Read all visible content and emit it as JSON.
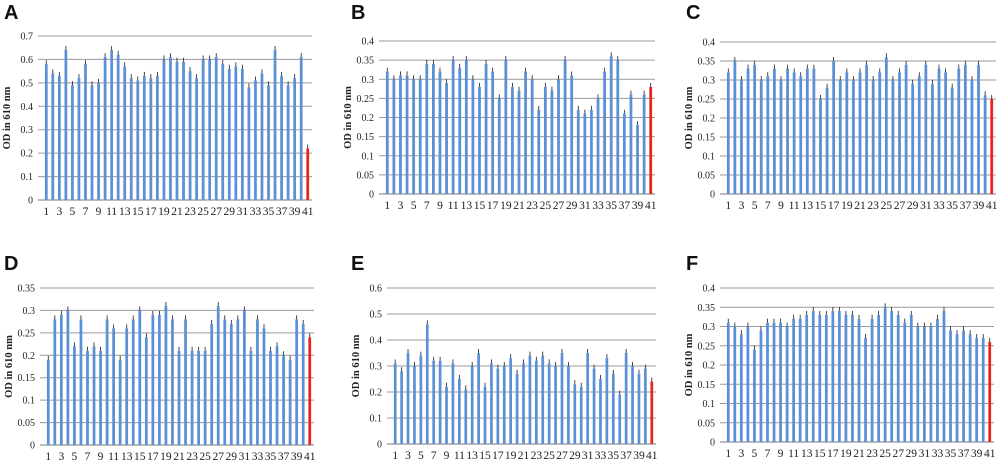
{
  "colors": {
    "bar": "#5b8fd6",
    "control": "#e8231a",
    "grid": "#9a9a9a",
    "axis": "#777777"
  },
  "chart_data": [
    {
      "type": "bar",
      "letter": "A",
      "ylabel": "OD in 610 nm",
      "yticks": [
        "0",
        "0.1",
        "0.2",
        "0.3",
        "0.4",
        "0.5",
        "0.6",
        "0.7"
      ],
      "ylim": [
        0,
        0.7
      ],
      "xtick_labels": [
        "1",
        "3",
        "5",
        "7",
        "9",
        "11",
        "13",
        "15",
        "17",
        "19",
        "21",
        "23",
        "25",
        "27",
        "29",
        "31",
        "33",
        "35",
        "37",
        "39",
        "41"
      ],
      "values": [
        0.58,
        0.54,
        0.53,
        0.64,
        0.49,
        0.52,
        0.58,
        0.49,
        0.5,
        0.61,
        0.64,
        0.62,
        0.57,
        0.52,
        0.51,
        0.53,
        0.52,
        0.53,
        0.6,
        0.61,
        0.59,
        0.59,
        0.55,
        0.52,
        0.6,
        0.6,
        0.61,
        0.58,
        0.56,
        0.57,
        0.56,
        0.48,
        0.51,
        0.54,
        0.49,
        0.64,
        0.53,
        0.49,
        0.52,
        0.61,
        0.22
      ],
      "highlight_last": true
    },
    {
      "type": "bar",
      "letter": "B",
      "ylabel": "OD in 610 nm",
      "yticks": [
        "0",
        "0.05",
        "0.1",
        "0.15",
        "0.2",
        "0.25",
        "0.3",
        "0.35",
        "0.4"
      ],
      "ylim": [
        0,
        0.4
      ],
      "xtick_labels": [
        "1",
        "3",
        "5",
        "7",
        "9",
        "11",
        "13",
        "15",
        "17",
        "19",
        "21",
        "23",
        "25",
        "27",
        "29",
        "31",
        "33",
        "35",
        "37",
        "39",
        "41"
      ],
      "values": [
        0.32,
        0.3,
        0.31,
        0.31,
        0.3,
        0.3,
        0.34,
        0.34,
        0.32,
        0.29,
        0.35,
        0.33,
        0.35,
        0.3,
        0.28,
        0.34,
        0.32,
        0.25,
        0.35,
        0.28,
        0.27,
        0.32,
        0.3,
        0.22,
        0.28,
        0.27,
        0.3,
        0.35,
        0.31,
        0.22,
        0.21,
        0.22,
        0.25,
        0.32,
        0.36,
        0.35,
        0.21,
        0.26,
        0.18,
        0.26,
        0.28
      ],
      "highlight_last": true
    },
    {
      "type": "bar",
      "letter": "C",
      "ylabel": "OD  in  610 nm",
      "yticks": [
        "0",
        "0.05",
        "0.1",
        "0.15",
        "0.2",
        "0.25",
        "0.3",
        "0.35",
        "0.4"
      ],
      "ylim": [
        0,
        0.4
      ],
      "xtick_labels": [
        "1",
        "3",
        "5",
        "7",
        "9",
        "11",
        "13",
        "15",
        "17",
        "19",
        "21",
        "23",
        "25",
        "27",
        "29",
        "31",
        "33",
        "35",
        "37",
        "39",
        "41"
      ],
      "values": [
        0.32,
        0.35,
        0.3,
        0.33,
        0.34,
        0.3,
        0.31,
        0.33,
        0.3,
        0.33,
        0.32,
        0.31,
        0.33,
        0.33,
        0.25,
        0.28,
        0.35,
        0.3,
        0.32,
        0.3,
        0.32,
        0.34,
        0.3,
        0.32,
        0.36,
        0.3,
        0.32,
        0.34,
        0.29,
        0.31,
        0.34,
        0.29,
        0.33,
        0.32,
        0.28,
        0.33,
        0.34,
        0.3,
        0.34,
        0.26,
        0.25
      ],
      "highlight_last": true
    },
    {
      "type": "bar",
      "letter": "D",
      "ylabel": "OD in 610 nm",
      "yticks": [
        "0",
        "0.05",
        "0.1",
        "0.15",
        "0.2",
        "0.25",
        "0.3",
        "0.35"
      ],
      "ylim": [
        0,
        0.35
      ],
      "xtick_labels": [
        "1",
        "3",
        "5",
        "7",
        "9",
        "11",
        "13",
        "15",
        "17",
        "19",
        "21",
        "23",
        "25",
        "27",
        "29",
        "31",
        "33",
        "35",
        "37",
        "39",
        "41"
      ],
      "values": [
        0.19,
        0.28,
        0.29,
        0.3,
        0.22,
        0.28,
        0.21,
        0.22,
        0.21,
        0.28,
        0.26,
        0.19,
        0.26,
        0.28,
        0.3,
        0.24,
        0.29,
        0.29,
        0.31,
        0.28,
        0.21,
        0.28,
        0.21,
        0.21,
        0.21,
        0.27,
        0.31,
        0.28,
        0.27,
        0.28,
        0.3,
        0.21,
        0.28,
        0.26,
        0.21,
        0.22,
        0.2,
        0.19,
        0.28,
        0.27,
        0.24
      ],
      "highlight_last": true
    },
    {
      "type": "bar",
      "letter": "E",
      "ylabel": "OD  in  610 nm",
      "yticks": [
        "0",
        "0.1",
        "0.2",
        "0.3",
        "0.4",
        "0.5",
        "0.6"
      ],
      "ylim": [
        0,
        0.6
      ],
      "xtick_labels": [
        "1",
        "3",
        "5",
        "7",
        "9",
        "11",
        "13",
        "15",
        "17",
        "19",
        "21",
        "23",
        "25",
        "27",
        "29",
        "31",
        "33",
        "35",
        "37",
        "39",
        "41"
      ],
      "values": [
        0.31,
        0.28,
        0.35,
        0.3,
        0.34,
        0.46,
        0.32,
        0.32,
        0.22,
        0.31,
        0.25,
        0.21,
        0.3,
        0.35,
        0.22,
        0.31,
        0.29,
        0.3,
        0.33,
        0.27,
        0.31,
        0.34,
        0.32,
        0.34,
        0.31,
        0.3,
        0.35,
        0.3,
        0.23,
        0.22,
        0.35,
        0.29,
        0.25,
        0.33,
        0.27,
        0.19,
        0.35,
        0.3,
        0.27,
        0.29,
        0.24
      ],
      "highlight_last": true
    },
    {
      "type": "bar",
      "letter": "F",
      "ylabel": "OD in 610 nm",
      "yticks": [
        "0",
        "0.05",
        "0.1",
        "0.15",
        "0.2",
        "0.25",
        "0.3",
        "0.35",
        "0.4"
      ],
      "ylim": [
        0,
        0.4
      ],
      "xtick_labels": [
        "1",
        "3",
        "5",
        "7",
        "9",
        "11",
        "13",
        "15",
        "17",
        "19",
        "21",
        "23",
        "25",
        "27",
        "29",
        "31",
        "33",
        "35",
        "37",
        "39",
        "41"
      ],
      "values": [
        0.31,
        0.3,
        0.28,
        0.3,
        0.24,
        0.29,
        0.31,
        0.31,
        0.31,
        0.3,
        0.32,
        0.32,
        0.33,
        0.34,
        0.33,
        0.33,
        0.34,
        0.34,
        0.33,
        0.33,
        0.32,
        0.27,
        0.32,
        0.33,
        0.35,
        0.34,
        0.33,
        0.31,
        0.33,
        0.3,
        0.3,
        0.3,
        0.32,
        0.34,
        0.29,
        0.28,
        0.29,
        0.28,
        0.27,
        0.27,
        0.26
      ],
      "highlight_last": true
    }
  ]
}
